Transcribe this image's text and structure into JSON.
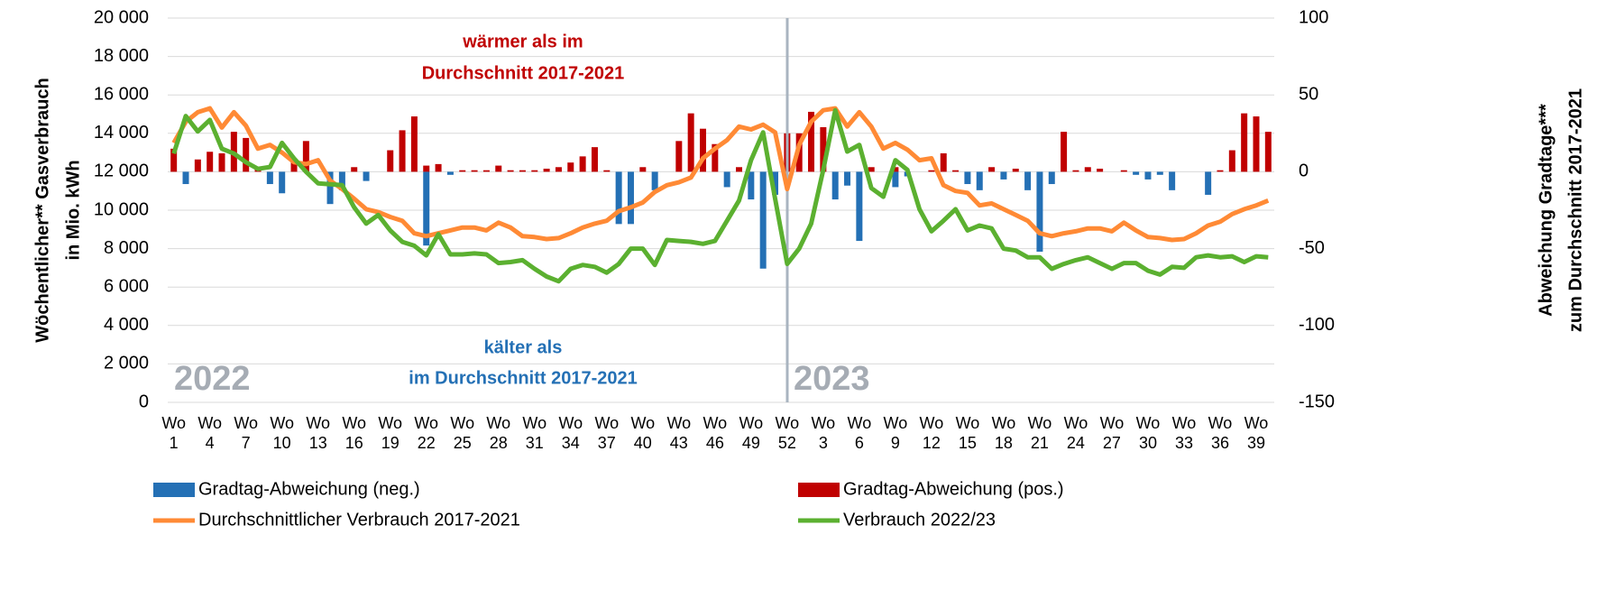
{
  "chart_data": {
    "type": "bar_line",
    "ylabel": [
      "Wöchentlicher** Gasverbrauch",
      "in Mio. kWh"
    ],
    "y2label": [
      "Abweichung Gradtage***",
      "zum Durchschnitt 2017-2021"
    ],
    "annotations": {
      "warm": [
        "wärmer als im",
        "Durchschnitt 2017-2021"
      ],
      "cold": [
        "kälter als",
        "im Durchschnitt 2017-2021"
      ],
      "year1": "2022",
      "year2": "2023"
    },
    "categories": [
      "Wo 1",
      null,
      null,
      "Wo 4",
      null,
      null,
      "Wo 7",
      null,
      null,
      "Wo 10",
      null,
      null,
      "Wo 13",
      null,
      null,
      "Wo 16",
      null,
      null,
      "Wo 19",
      null,
      null,
      "Wo 22",
      null,
      null,
      "Wo 25",
      null,
      null,
      "Wo 28",
      null,
      null,
      "Wo 31",
      null,
      null,
      "Wo 34",
      null,
      null,
      "Wo 37",
      null,
      null,
      "Wo 40",
      null,
      null,
      "Wo 43",
      null,
      null,
      "Wo 46",
      null,
      null,
      "Wo 49",
      null,
      null,
      "Wo 52",
      null,
      null,
      "Wo 3",
      null,
      null,
      "Wo 6",
      null,
      null,
      "Wo 9",
      null,
      null,
      "Wo 12",
      null,
      null,
      "Wo 15",
      null,
      null,
      "Wo 18",
      null,
      null,
      "Wo 21",
      null,
      null,
      "Wo 24",
      null,
      null,
      "Wo 27",
      null,
      null,
      "Wo 30",
      null,
      null,
      "Wo 33",
      null,
      null,
      "Wo 36",
      null,
      null,
      "Wo 39",
      null
    ],
    "ylim": [
      0,
      20000
    ],
    "yticks": [
      0,
      {
        "value": 2000,
        "label": "2 000"
      },
      {
        "value": 4000,
        "label": "4 000"
      },
      {
        "value": 6000,
        "label": "6 000"
      },
      {
        "value": 8000,
        "label": "8 000"
      },
      {
        "value": 10000,
        "label": "10 000"
      },
      {
        "value": 12000,
        "label": "12 000"
      },
      {
        "value": 14000,
        "label": "14 000"
      },
      {
        "value": 16000,
        "label": "16 000"
      },
      {
        "value": 18000,
        "label": "18 000"
      },
      {
        "value": 20000,
        "label": "20 000"
      }
    ],
    "y2lim": [
      -150,
      100
    ],
    "y2ticks": [
      -150,
      -100,
      -50,
      0,
      50,
      100
    ],
    "grid": true,
    "series": [
      {
        "name": "Gradtag-Abweichung (neg.)",
        "type": "bar",
        "axis": "y2",
        "color": "#2470b5",
        "values": [
          null,
          -8,
          null,
          null,
          null,
          null,
          null,
          null,
          -8,
          -14,
          null,
          null,
          null,
          -21,
          -12,
          null,
          -6,
          null,
          null,
          null,
          null,
          -48,
          null,
          -2,
          null,
          null,
          null,
          null,
          null,
          null,
          null,
          null,
          null,
          null,
          null,
          null,
          null,
          -34,
          -34,
          null,
          -12,
          null,
          null,
          null,
          null,
          null,
          -10,
          null,
          -18,
          -63,
          -15,
          null,
          null,
          null,
          null,
          -18,
          -9,
          -45,
          null,
          null,
          -10,
          -3,
          null,
          null,
          null,
          null,
          -8,
          -12,
          null,
          -5,
          null,
          -12,
          -52,
          -8,
          null,
          null,
          null,
          null,
          null,
          null,
          -2,
          -5,
          -2,
          -12,
          null,
          null,
          -15,
          null,
          null,
          null,
          null,
          null
        ]
      },
      {
        "name": "Gradtag-Abweichung (pos.)",
        "type": "bar",
        "axis": "y2",
        "color": "#c00000",
        "values": [
          15,
          null,
          8,
          13,
          12,
          26,
          22,
          3,
          null,
          null,
          7,
          20,
          null,
          null,
          null,
          3,
          null,
          null,
          14,
          27,
          36,
          4,
          5,
          null,
          1,
          1,
          1,
          4,
          1,
          1,
          1,
          2,
          3,
          6,
          10,
          16,
          1,
          null,
          null,
          3,
          null,
          null,
          20,
          38,
          28,
          18,
          null,
          3,
          null,
          null,
          null,
          25,
          25,
          39,
          29,
          null,
          null,
          null,
          3,
          null,
          3,
          null,
          null,
          1,
          12,
          1,
          null,
          null,
          3,
          null,
          2,
          null,
          null,
          null,
          26,
          1,
          3,
          2,
          null,
          1,
          null,
          null,
          null,
          null,
          null,
          null,
          null,
          1,
          14,
          38,
          36,
          26
        ]
      },
      {
        "name": "Durchschnittlicher Verbrauch 2017-2021",
        "type": "line",
        "color": "#ff8a35",
        "values": [
          13500,
          14600,
          15100,
          15300,
          14300,
          15100,
          14400,
          13200,
          13400,
          13000,
          12500,
          12400,
          12600,
          11550,
          11100,
          10600,
          10050,
          9900,
          9650,
          9450,
          8800,
          8650,
          8800,
          8950,
          9100,
          9100,
          8950,
          9350,
          9100,
          8650,
          8600,
          8500,
          8550,
          8800,
          9100,
          9300,
          9450,
          9950,
          10150,
          10400,
          10950,
          11300,
          11450,
          11700,
          12700,
          13200,
          13650,
          14350,
          14200,
          14450,
          14050,
          11100,
          13400,
          14600,
          15200,
          15300,
          14350,
          15100,
          14350,
          13200,
          13500,
          13150,
          12600,
          12700,
          11300,
          11000,
          10900,
          10250,
          10350,
          10050,
          9750,
          9450,
          8800,
          8650,
          8800,
          8900,
          9050,
          9050,
          8900,
          9350,
          8950,
          8600,
          8550,
          8450,
          8500,
          8800,
          9200,
          9400,
          9800,
          10050,
          10250,
          10500
        ]
      },
      {
        "name": "Verbrauch 2022/23",
        "type": "line",
        "color": "#5bb030",
        "values": [
          12950,
          14900,
          14100,
          14700,
          13200,
          12950,
          12500,
          12150,
          12250,
          13500,
          12700,
          12000,
          11400,
          11350,
          11300,
          10150,
          9300,
          9750,
          8950,
          8350,
          8150,
          7650,
          8750,
          7700,
          7700,
          7750,
          7700,
          7250,
          7300,
          7400,
          6950,
          6550,
          6300,
          6950,
          7150,
          7050,
          6750,
          7200,
          8000,
          8000,
          7150,
          8450,
          8400,
          8350,
          8250,
          8400,
          9450,
          10500,
          12600,
          14050,
          10600,
          7200,
          8000,
          9300,
          12100,
          15200,
          13050,
          13400,
          11150,
          10700,
          12600,
          12100,
          10050,
          8900,
          9450,
          10050,
          8950,
          9200,
          9050,
          8000,
          7900,
          7550,
          7550,
          6950,
          7200,
          7400,
          7550,
          7250,
          6950,
          7250,
          7250,
          6850,
          6650,
          7050,
          7000,
          7550,
          7650,
          7550,
          7600,
          7300,
          7600,
          7550
        ]
      }
    ]
  }
}
